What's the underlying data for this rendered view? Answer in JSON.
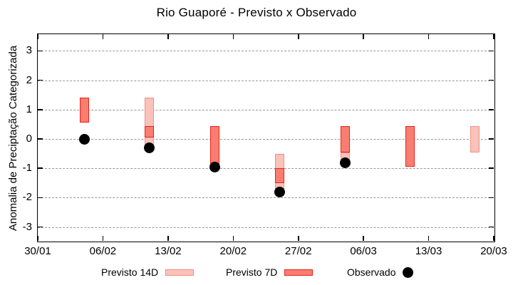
{
  "chart_data": {
    "type": "bar",
    "subtype": "range-bars-with-observed-points",
    "title": "Rio Guaporé - Previsto x Observado",
    "ylabel": "Anomalia de Preciptação Categorizada",
    "xlabel": "",
    "ylim": [
      -3.5,
      3.55
    ],
    "xlim_days": [
      0,
      49
    ],
    "grid": "horizontal-dashed",
    "yticks": [
      3,
      2,
      1,
      0,
      -1,
      -2,
      -3
    ],
    "xticks": [
      {
        "day": 0,
        "label": "30/01"
      },
      {
        "day": 7,
        "label": "06/02"
      },
      {
        "day": 14,
        "label": "13/02"
      },
      {
        "day": 21,
        "label": "20/02"
      },
      {
        "day": 28,
        "label": "27/02"
      },
      {
        "day": 35,
        "label": "06/03"
      },
      {
        "day": 42,
        "label": "13/03"
      },
      {
        "day": 49,
        "label": "20/03"
      }
    ],
    "groups": [
      {
        "date": "04/02",
        "day": 5,
        "previsto_14d": null,
        "previsto_7d": [
          0.55,
          1.4
        ],
        "observado": 0.0
      },
      {
        "date": "11/02",
        "day": 12,
        "previsto_14d": [
          -0.25,
          1.4
        ],
        "previsto_7d": [
          0.05,
          0.45
        ],
        "observado": -0.3
      },
      {
        "date": "18/02",
        "day": 19,
        "previsto_14d": null,
        "previsto_7d": [
          -1.0,
          0.45
        ],
        "observado": -0.95
      },
      {
        "date": "25/02",
        "day": 26,
        "previsto_14d": [
          -1.7,
          -0.5
        ],
        "previsto_7d": [
          -1.5,
          -1.0
        ],
        "observado": -1.8
      },
      {
        "date": "04/03",
        "day": 33,
        "previsto_14d": [
          -0.75,
          -0.45
        ],
        "previsto_7d": [
          -0.45,
          0.45
        ],
        "observado": -0.8
      },
      {
        "date": "11/03",
        "day": 40,
        "previsto_14d": null,
        "previsto_7d": [
          -0.95,
          0.45
        ],
        "observado": null
      },
      {
        "date": "18/03",
        "day": 47,
        "previsto_14d": [
          -0.45,
          0.45
        ],
        "previsto_7d": null,
        "observado": null
      }
    ],
    "colors": {
      "p14_fill": "#f9c2ba",
      "p14_border": "#ef9082",
      "p7_fill": "#f97d70",
      "p7_border": "#e6241a",
      "obs": "#000000",
      "grid": "#999999",
      "axis": "#000000"
    },
    "legend": {
      "position": "below-plot",
      "items": [
        {
          "label": "Previsto 14D",
          "marker": "p14"
        },
        {
          "label": "Previsto 7D",
          "marker": "p7"
        },
        {
          "label": "Observado",
          "marker": "obs"
        }
      ]
    }
  }
}
